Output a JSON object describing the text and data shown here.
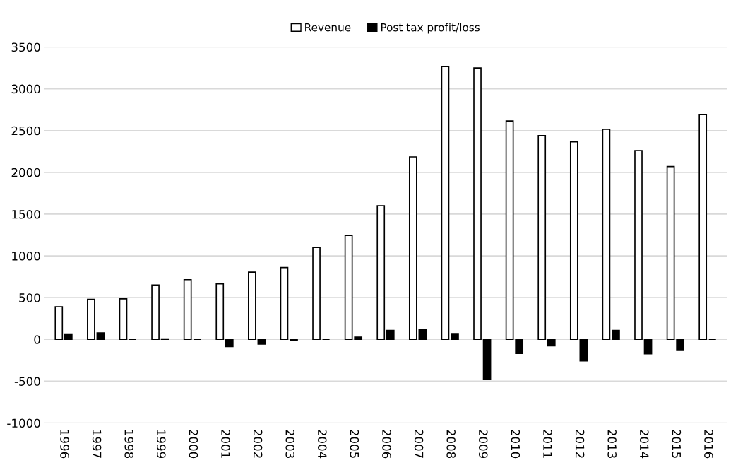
{
  "chart_data": {
    "type": "bar",
    "categories": [
      "1996",
      "1997",
      "1998",
      "1999",
      "2000",
      "2001",
      "2002",
      "2003",
      "2004",
      "2005",
      "2006",
      "2007",
      "2008",
      "2009",
      "2010",
      "2011",
      "2012",
      "2013",
      "2014",
      "2015",
      "2016"
    ],
    "series": [
      {
        "name": "Revenue",
        "color": "#ffffff",
        "values": [
          390,
          480,
          485,
          650,
          715,
          665,
          805,
          860,
          1100,
          1245,
          1600,
          2185,
          3265,
          3250,
          2615,
          2440,
          2365,
          2515,
          2260,
          2070,
          2690
        ]
      },
      {
        "name": "Post tax profit/loss",
        "color": "#000000",
        "values": [
          65,
          77,
          0,
          5,
          0,
          -85,
          -56,
          -15,
          0,
          28,
          108,
          116,
          69,
          -473,
          -169,
          -77,
          -257,
          108,
          -172,
          -124,
          0
        ]
      }
    ],
    "ylim": [
      -1000,
      3500
    ],
    "yticks": [
      -1000,
      -500,
      0,
      500,
      1000,
      1500,
      2000,
      2500,
      3000,
      3500
    ],
    "grid": "y",
    "legend": "top"
  }
}
